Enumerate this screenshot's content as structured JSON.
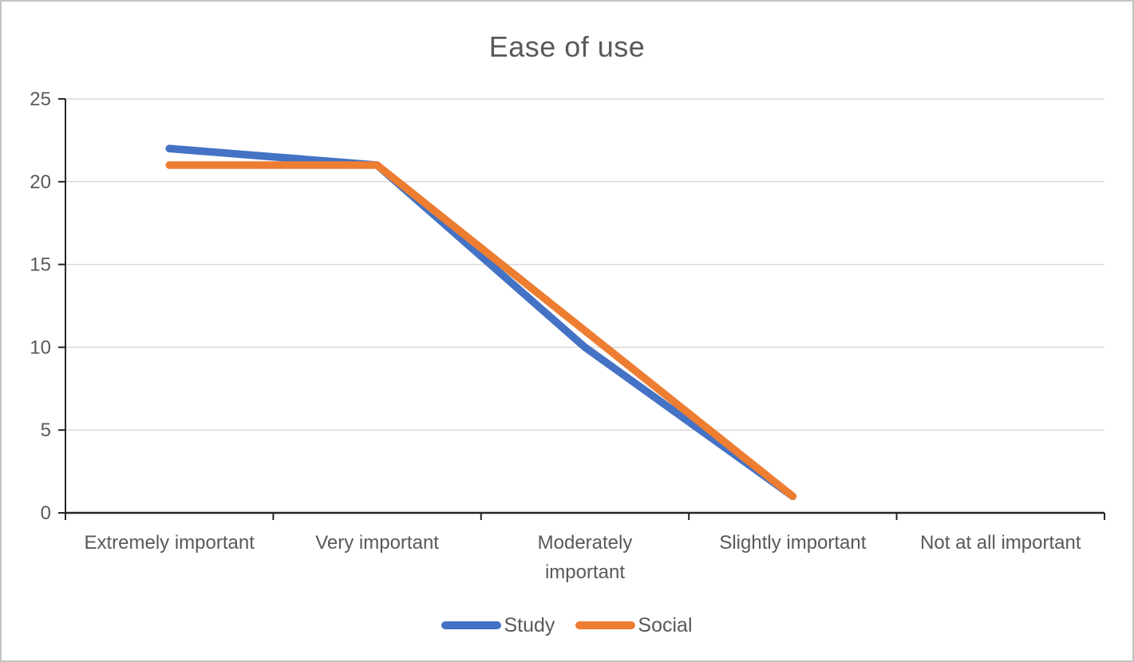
{
  "window": {
    "background": "#ffffff",
    "border_color": "#c3c3c3"
  },
  "chart_data": {
    "type": "line",
    "title": "Ease of use",
    "categories": [
      "Extremely important",
      "Very important",
      "Moderately important",
      "Slightly important",
      "Not at all important"
    ],
    "category_display": [
      "Extremely important",
      "Very important",
      "Moderately\nimportant",
      "Slightly important",
      "Not at all important"
    ],
    "series": [
      {
        "name": "Study",
        "color": "#4472C4",
        "values": [
          22,
          21,
          10,
          1,
          null
        ]
      },
      {
        "name": "Social",
        "color": "#ED7D31",
        "values": [
          21,
          21,
          11,
          1,
          null
        ]
      }
    ],
    "xlabel": "",
    "ylabel": "",
    "ylim": [
      0,
      25
    ],
    "ytick_step": 5,
    "ytick_labels": [
      "0",
      "5",
      "10",
      "15",
      "20",
      "25"
    ],
    "grid": "horizontal",
    "legend_position": "bottom",
    "colors": {
      "text": "#595959",
      "gridline": "#D9D9D9",
      "axis": "#262626"
    }
  }
}
